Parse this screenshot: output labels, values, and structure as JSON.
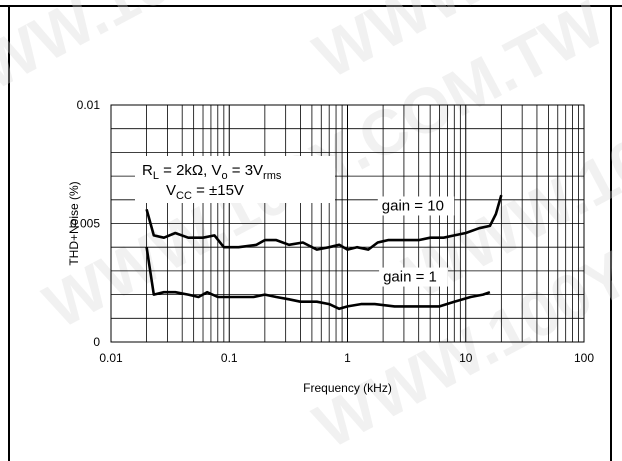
{
  "watermark": "WWW.100Y.COM.TW",
  "chart_data": {
    "type": "line",
    "xlabel": "Frequency (kHz)",
    "ylabel": "THD+Noise (%)",
    "xscale": "log",
    "xlim": [
      0.01,
      100
    ],
    "ylim": [
      0,
      0.01
    ],
    "x_ticks": [
      {
        "value": 0.01,
        "label": "0.01"
      },
      {
        "value": 0.1,
        "label": "0.1"
      },
      {
        "value": 1,
        "label": "1"
      },
      {
        "value": 10,
        "label": "10"
      },
      {
        "value": 100,
        "label": "100"
      }
    ],
    "y_ticks": [
      {
        "value": 0,
        "label": "0"
      },
      {
        "value": 0.005,
        "label": "0.005"
      },
      {
        "value": 0.01,
        "label": "0.01"
      }
    ],
    "y_minor_step": 0.001,
    "grid": true,
    "conditions": {
      "line1": {
        "main": "R",
        "sub": "L",
        "rest": " = 2kΩ, V",
        "sub2": "o",
        "rest2": " = 3V",
        "sub3": "rms"
      },
      "line2": {
        "main": "V",
        "sub": "CC",
        "rest": " = ±15V"
      }
    },
    "series": [
      {
        "name": "gain = 10",
        "label_at": [
          1.95,
          0.00555
        ],
        "points": [
          [
            0.02,
            0.0056
          ],
          [
            0.023,
            0.0045
          ],
          [
            0.028,
            0.0044
          ],
          [
            0.035,
            0.0046
          ],
          [
            0.045,
            0.0044
          ],
          [
            0.06,
            0.0044
          ],
          [
            0.075,
            0.0045
          ],
          [
            0.09,
            0.004
          ],
          [
            0.12,
            0.004
          ],
          [
            0.17,
            0.0041
          ],
          [
            0.2,
            0.0043
          ],
          [
            0.25,
            0.0043
          ],
          [
            0.32,
            0.0041
          ],
          [
            0.42,
            0.0042
          ],
          [
            0.55,
            0.0039
          ],
          [
            0.7,
            0.004
          ],
          [
            0.85,
            0.0041
          ],
          [
            1.0,
            0.0039
          ],
          [
            1.2,
            0.004
          ],
          [
            1.5,
            0.0039
          ],
          [
            1.8,
            0.0042
          ],
          [
            2.2,
            0.0043
          ],
          [
            3.0,
            0.0043
          ],
          [
            4.0,
            0.0043
          ],
          [
            5.0,
            0.0044
          ],
          [
            6.5,
            0.0044
          ],
          [
            8.0,
            0.0045
          ],
          [
            10,
            0.0046
          ],
          [
            13,
            0.0048
          ],
          [
            16,
            0.0049
          ],
          [
            18,
            0.0054
          ],
          [
            20,
            0.0062
          ]
        ]
      },
      {
        "name": "gain = 1",
        "label_at": [
          2.0,
          0.00255
        ],
        "points": [
          [
            0.02,
            0.004
          ],
          [
            0.023,
            0.002
          ],
          [
            0.028,
            0.0021
          ],
          [
            0.035,
            0.0021
          ],
          [
            0.045,
            0.002
          ],
          [
            0.055,
            0.0019
          ],
          [
            0.065,
            0.0021
          ],
          [
            0.08,
            0.0019
          ],
          [
            0.1,
            0.0019
          ],
          [
            0.13,
            0.0019
          ],
          [
            0.16,
            0.0019
          ],
          [
            0.2,
            0.002
          ],
          [
            0.25,
            0.0019
          ],
          [
            0.32,
            0.0018
          ],
          [
            0.4,
            0.0017
          ],
          [
            0.55,
            0.0017
          ],
          [
            0.7,
            0.0016
          ],
          [
            0.85,
            0.0014
          ],
          [
            1.0,
            0.0015
          ],
          [
            1.3,
            0.0016
          ],
          [
            1.7,
            0.0016
          ],
          [
            2.5,
            0.0015
          ],
          [
            4.0,
            0.0015
          ],
          [
            6.0,
            0.0015
          ],
          [
            8.0,
            0.0017
          ],
          [
            11,
            0.0019
          ],
          [
            14,
            0.002
          ],
          [
            16,
            0.0021
          ]
        ]
      }
    ]
  }
}
